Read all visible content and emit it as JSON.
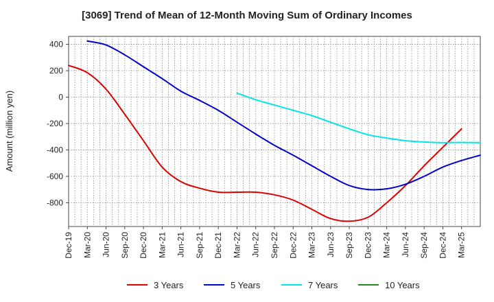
{
  "chart_data": {
    "type": "line",
    "title": "[3069]  Trend of Mean of 12-Month Moving Sum of Ordinary Incomes",
    "xlabel": "",
    "ylabel": "Amount (million yen)",
    "ylim": [
      -980,
      460
    ],
    "yticks": [
      400,
      200,
      0,
      -200,
      -400,
      -600,
      -800
    ],
    "ytick_labels": [
      "400",
      "200",
      "0",
      "-200",
      "-400",
      "-600",
      "-800"
    ],
    "xlim": [
      0,
      66
    ],
    "xtick_labels": [
      "Dec-19",
      "Mar-20",
      "Jun-20",
      "Sep-20",
      "Dec-20",
      "Mar-21",
      "Jun-21",
      "Sep-21",
      "Dec-21",
      "Mar-22",
      "Jun-22",
      "Sep-22",
      "Dec-22",
      "Mar-23",
      "Jun-23",
      "Sep-23",
      "Dec-23",
      "Mar-24",
      "Jun-24",
      "Sep-24",
      "Dec-24",
      "Mar-25"
    ],
    "grid": true,
    "legend_position": "bottom",
    "series": [
      {
        "name": "3 Years",
        "color": "#dd0000",
        "x": [
          0,
          3,
          6,
          9,
          12,
          15,
          18,
          21,
          24,
          27,
          30,
          33,
          36,
          39,
          42,
          45,
          48,
          51,
          54,
          57,
          60,
          63
        ],
        "values": [
          240,
          185,
          60,
          -130,
          -330,
          -530,
          -640,
          -690,
          -720,
          -720,
          -720,
          -740,
          -780,
          -850,
          -920,
          -940,
          -910,
          -800,
          -670,
          -520,
          -380,
          -240
        ]
      },
      {
        "name": "5 Years",
        "color": "#0000cc",
        "x": [
          3,
          6,
          9,
          12,
          15,
          18,
          21,
          24,
          27,
          30,
          33,
          36,
          39,
          42,
          45,
          48,
          51,
          54,
          57,
          60,
          63,
          66
        ],
        "values": [
          425,
          395,
          320,
          230,
          140,
          45,
          -25,
          -100,
          -190,
          -280,
          -365,
          -440,
          -520,
          -600,
          -670,
          -700,
          -695,
          -660,
          -600,
          -530,
          -480,
          -440
        ]
      },
      {
        "name": "7 Years",
        "color": "#00e5e5",
        "x": [
          27,
          30,
          33,
          36,
          39,
          42,
          45,
          48,
          51,
          54,
          57,
          60,
          63,
          66
        ],
        "values": [
          30,
          -20,
          -60,
          -100,
          -140,
          -190,
          -240,
          -285,
          -310,
          -330,
          -340,
          -345,
          -343,
          -345
        ]
      },
      {
        "name": "10 Years",
        "color": "#228822",
        "x": [],
        "values": []
      }
    ]
  }
}
